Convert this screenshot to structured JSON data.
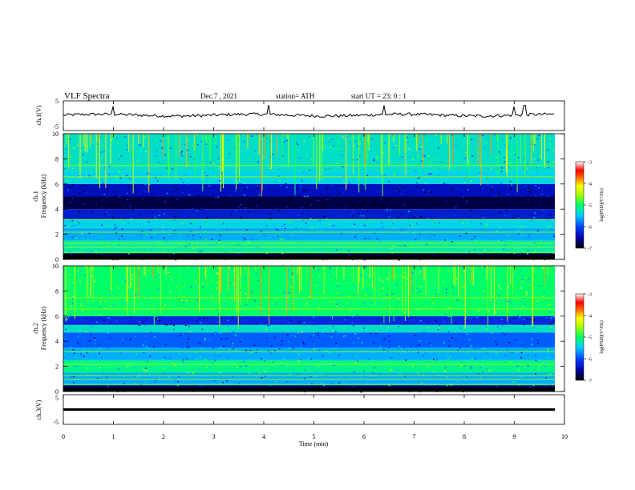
{
  "header": {
    "title": "VLF  Spectra",
    "date": "Dec.7  , 2021",
    "station": "station= ATH",
    "start": "start  UT  =    23: 0   : 1"
  },
  "colorbar_label": "log(PSD)(V²/Hz)",
  "chart_data": [
    {
      "type": "line",
      "name_label": "ch.1(V)",
      "ylabel": "ch.1(V)",
      "ylim": [
        -5,
        5
      ],
      "ytick_labels": [
        "5",
        "-5"
      ],
      "description_values": {
        "baseline": 0.2,
        "spike_times_min": [
          1.0,
          4.1,
          6.4,
          9.0,
          9.2
        ]
      }
    },
    {
      "type": "heatmap",
      "ylabel": [
        "ch.1",
        "Frequency  (kHz)"
      ],
      "ylim": [
        0,
        10
      ],
      "ytick_labels": [
        "0",
        "2",
        "4",
        "6",
        "8",
        "10"
      ],
      "colorbar": {
        "ticks": [
          "-3",
          "-4",
          "-5",
          "-6",
          "-7"
        ],
        "range": [
          -7,
          -3
        ]
      },
      "bands_khz": [
        {
          "from": 0.0,
          "to": 0.5,
          "level": -6.8
        },
        {
          "from": 0.5,
          "to": 1.5,
          "level": -5.2
        },
        {
          "from": 1.5,
          "to": 2.5,
          "level": -5.6
        },
        {
          "from": 2.5,
          "to": 3.2,
          "level": -5.4
        },
        {
          "from": 3.2,
          "to": 4.0,
          "level": -6.3
        },
        {
          "from": 4.0,
          "to": 5.0,
          "level": -6.8
        },
        {
          "from": 5.0,
          "to": 6.0,
          "level": -6.4
        },
        {
          "from": 6.0,
          "to": 7.0,
          "level": -5.4
        },
        {
          "from": 7.0,
          "to": 10.0,
          "level": -5.3
        }
      ]
    },
    {
      "type": "heatmap",
      "ylabel": [
        "ch.2",
        "Frequency  (kHz)"
      ],
      "ylim": [
        0,
        10
      ],
      "ytick_labels": [
        "0",
        "2",
        "4",
        "6",
        "8",
        "10"
      ],
      "colorbar": {
        "ticks": [
          "-3",
          "-4",
          "-5",
          "-6",
          "-7"
        ],
        "range": [
          -7,
          -3
        ]
      },
      "bands_khz": [
        {
          "from": 0.0,
          "to": 0.5,
          "level": -6.7
        },
        {
          "from": 0.5,
          "to": 1.5,
          "level": -5.6
        },
        {
          "from": 1.5,
          "to": 2.5,
          "level": -5.1
        },
        {
          "from": 2.5,
          "to": 3.5,
          "level": -5.6
        },
        {
          "from": 3.5,
          "to": 4.7,
          "level": -5.9
        },
        {
          "from": 4.7,
          "to": 5.3,
          "level": -5.3
        },
        {
          "from": 5.3,
          "to": 6.0,
          "level": -6.2
        },
        {
          "from": 6.0,
          "to": 10.0,
          "level": -5.0
        }
      ]
    },
    {
      "type": "line",
      "ylabel": "ch.3(V)",
      "ylim": [
        -5,
        5
      ],
      "ytick_labels": [
        "5",
        "-5"
      ],
      "description_values": {
        "baseline": 0.0
      }
    }
  ],
  "xaxis": {
    "label": "Time  (min)",
    "xlim": [
      0,
      10
    ],
    "ticks": [
      "0",
      "1",
      "2",
      "3",
      "4",
      "5",
      "6",
      "7",
      "8",
      "9",
      "10"
    ]
  }
}
